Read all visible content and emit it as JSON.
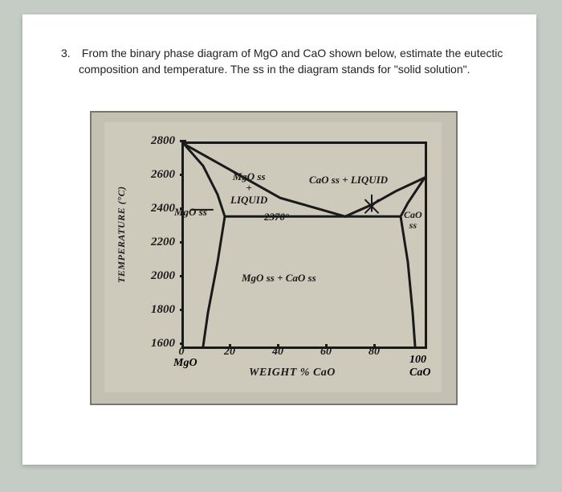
{
  "question": {
    "number": "3.",
    "line1": "From the binary phase diagram of MgO and CaO shown below, estimate the eutectic",
    "line2": "composition and temperature. The ss in the diagram stands for \"solid solution\"."
  },
  "diagram": {
    "type": "phase-diagram",
    "background_color": "#cdc9bb",
    "frame_color": "#1a1a1a",
    "y_axis": {
      "label": "TEMPERATURE (°C)",
      "ticks": [
        2800,
        2600,
        2400,
        2200,
        2000,
        1800,
        1600
      ],
      "lim": [
        1600,
        2800
      ]
    },
    "x_axis": {
      "label": "WEIGHT % CaO",
      "ticks": [
        0,
        20,
        40,
        60,
        80,
        100
      ],
      "left_end": "MgO",
      "right_end": "CaO",
      "right_end2": "100",
      "lim": [
        0,
        100
      ]
    },
    "eutectic": {
      "temperature_label": "2370°",
      "composition_approx": 67
    },
    "regions": {
      "upper_left": "MgO ss\n+\nLIQUID",
      "upper_right": "CaO ss + LIQUID",
      "left_leader": "MgO ss",
      "lower_mid": "MgO ss + CaO ss",
      "right_side": "CaO\nss"
    },
    "curves": {
      "color": "#1a1a1a",
      "width": 2.5,
      "liquidus_left": [
        [
          0,
          2800
        ],
        [
          15,
          2680
        ],
        [
          40,
          2480
        ],
        [
          67,
          2370
        ]
      ],
      "liquidus_right": [
        [
          67,
          2370
        ],
        [
          78,
          2440
        ],
        [
          88,
          2520
        ],
        [
          100,
          2600
        ]
      ],
      "eutectic_line": [
        [
          17,
          2370
        ],
        [
          90,
          2370
        ]
      ],
      "solidus_left": [
        [
          0,
          2800
        ],
        [
          8,
          2670
        ],
        [
          14,
          2500
        ],
        [
          17,
          2370
        ]
      ],
      "solidus_right": [
        [
          90,
          2370
        ],
        [
          93,
          2450
        ],
        [
          100,
          2600
        ]
      ],
      "solvus_left": [
        [
          17,
          2370
        ],
        [
          14,
          2100
        ],
        [
          10,
          1800
        ],
        [
          8,
          1600
        ]
      ],
      "solvus_right": [
        [
          90,
          2370
        ],
        [
          93,
          2100
        ],
        [
          95,
          1800
        ],
        [
          96,
          1600
        ]
      ],
      "tie_pt": [
        67,
        2370
      ]
    }
  }
}
